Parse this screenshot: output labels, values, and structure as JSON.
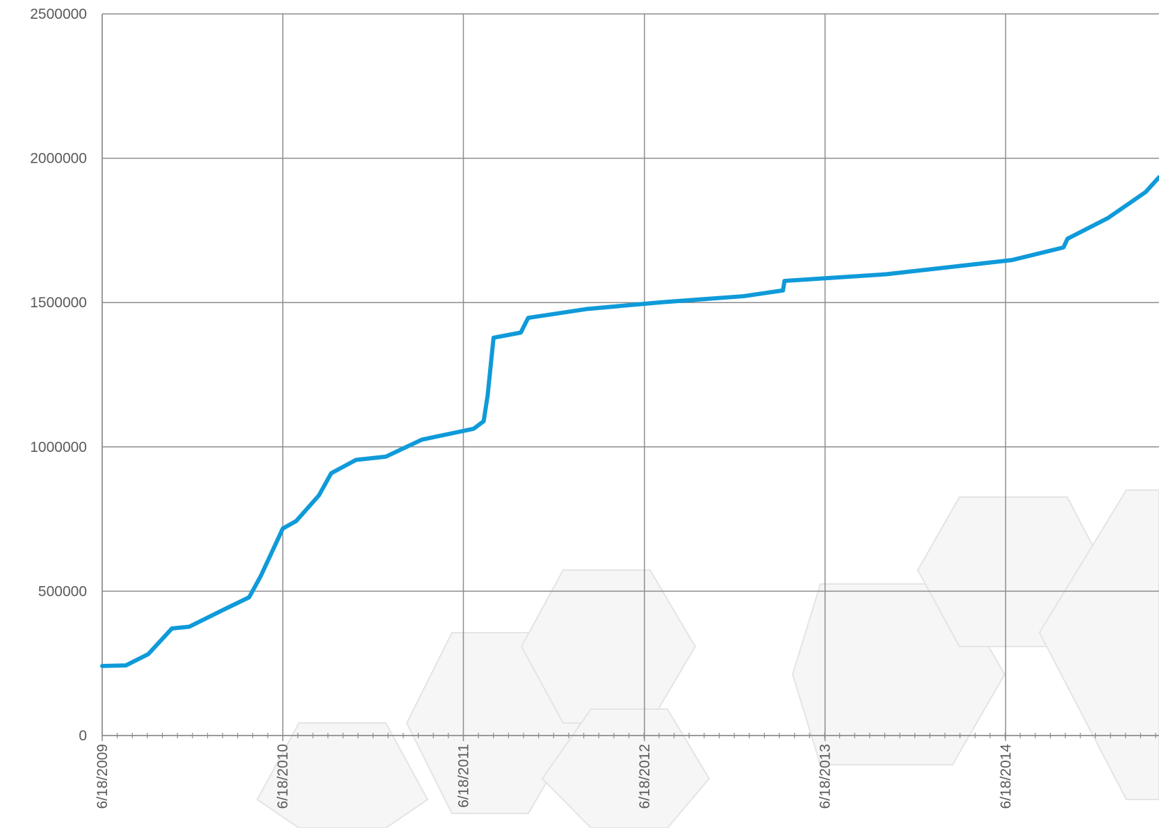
{
  "chart_data": {
    "type": "line",
    "x": [
      "6/18/2009",
      "8/5/2009",
      "9/19/2009",
      "11/6/2009",
      "12/11/2009",
      "2/17/2010",
      "4/11/2010",
      "5/4/2010",
      "6/18/2010",
      "7/15/2010",
      "8/30/2010",
      "9/24/2010",
      "11/13/2010",
      "1/12/2011",
      "3/26/2011",
      "7/9/2011",
      "7/29/2011",
      "8/6/2011",
      "8/18/2011",
      "10/12/2011",
      "10/27/2011",
      "2/24/2012",
      "7/23/2012",
      "1/4/2013",
      "3/25/2013",
      "3/28/2013",
      "10/19/2013",
      "6/30/2014",
      "10/13/2014",
      "10/21/2014",
      "1/11/2015",
      "3/28/2015",
      "4/24/2015"
    ],
    "series": [
      {
        "color": "#0f9ad9",
        "values": [
          241000,
          243000,
          282000,
          371000,
          377000,
          435000,
          479000,
          551000,
          717000,
          743000,
          832000,
          909000,
          955000,
          966000,
          1025000,
          1063000,
          1089000,
          1178000,
          1378000,
          1396000,
          1447000,
          1478000,
          1501000,
          1522000,
          1542000,
          1575000,
          1598000,
          1647000,
          1691000,
          1721000,
          1793000,
          1883000,
          1934000
        ]
      }
    ],
    "xlim": [
      "6/18/2009",
      "4/24/2015"
    ],
    "xticks": [
      "6/18/2009",
      "6/18/2010",
      "6/18/2011",
      "6/18/2012",
      "6/18/2013",
      "6/18/2014"
    ],
    "ylim": [
      0,
      2500000
    ],
    "yticks": [
      0,
      500000,
      1000000,
      1500000,
      2000000,
      2500000
    ],
    "grid": true
  }
}
